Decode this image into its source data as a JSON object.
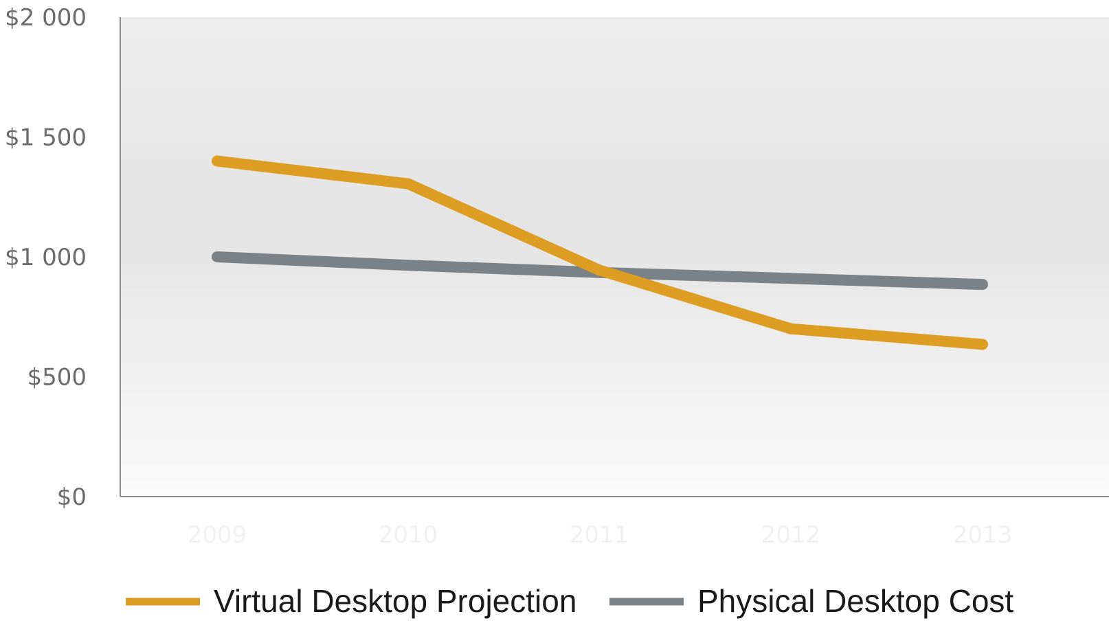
{
  "chart_data": {
    "type": "line",
    "title": "",
    "xlabel": "",
    "ylabel": "",
    "categories": [
      "2009",
      "2010",
      "2011",
      "2012",
      "2013"
    ],
    "ylim": [
      0,
      2000
    ],
    "yticks": [
      0,
      500,
      1000,
      1500,
      2000
    ],
    "ytick_labels": [
      "$0",
      "$500",
      "$1 000",
      "$1 500",
      "$2 000"
    ],
    "grid": false,
    "legend_position": "bottom",
    "series": [
      {
        "name": "Virtual Desktop Projection",
        "color": "#dd9c22",
        "values": [
          1400,
          1305,
          945,
          700,
          635
        ]
      },
      {
        "name": "Physical Desktop Cost",
        "color": "#7b8287",
        "values": [
          1000,
          965,
          935,
          910,
          885
        ]
      }
    ]
  }
}
